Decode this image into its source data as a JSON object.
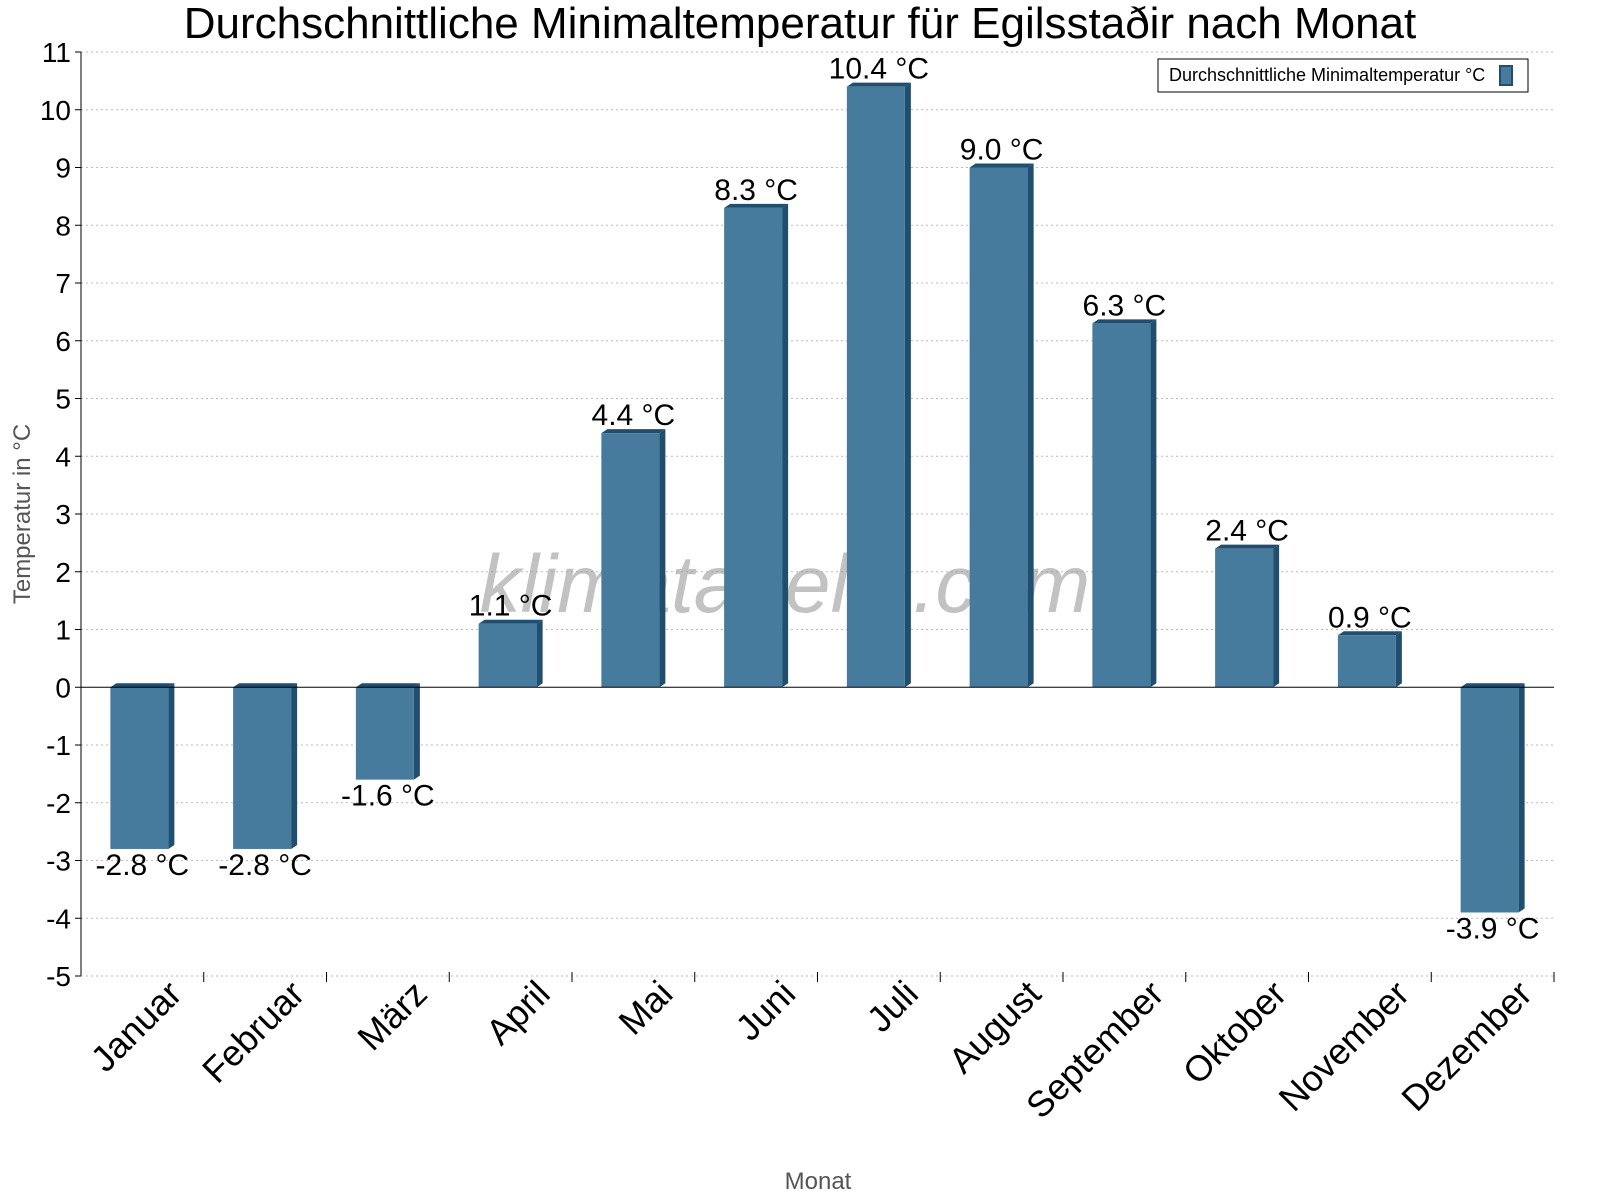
{
  "watermark": "klimatabelle.com",
  "chart_data": {
    "type": "bar",
    "title": "Durchschnittliche Minimaltemperatur für Egilsstaðir nach Monat",
    "xlabel": "Monat",
    "ylabel": "Temperatur in °C",
    "categories": [
      "Januar",
      "Februar",
      "März",
      "April",
      "Mai",
      "Juni",
      "Juli",
      "August",
      "September",
      "Oktober",
      "November",
      "Dezember"
    ],
    "series": [
      {
        "name": "Durchschnittliche Minimaltemperatur °C",
        "values": [
          -2.8,
          -2.8,
          -1.6,
          1.1,
          4.4,
          8.3,
          10.4,
          9.0,
          6.3,
          2.4,
          0.9,
          -3.9
        ],
        "labels": [
          "-2.8 °C",
          "-2.8 °C",
          "-1.6 °C",
          "1.1 °C",
          "4.4 °C",
          "8.3 °C",
          "10.4 °C",
          "9.0 °C",
          "6.3 °C",
          "2.4 °C",
          "0.9 °C",
          "-3.9 °C"
        ],
        "color": "#467b9d",
        "side_color": "#1f4e6e"
      }
    ],
    "ylim": [
      -5,
      11
    ],
    "yticks": [
      "-5",
      "-4",
      "-3",
      "-2",
      "-1",
      "0",
      "1",
      "2",
      "3",
      "4",
      "5",
      "6",
      "7",
      "8",
      "9",
      "10",
      "11"
    ],
    "grid": true,
    "legend_position": "top-right"
  }
}
